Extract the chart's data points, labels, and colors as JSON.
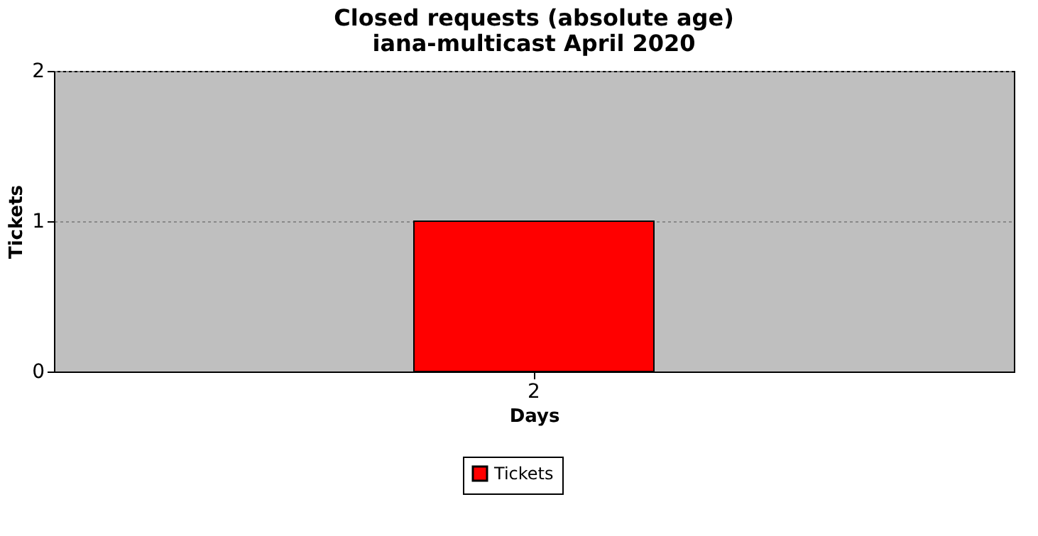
{
  "chart_data": {
    "type": "bar",
    "title": "Closed requests (absolute age)",
    "subtitle": "iana-multicast April 2020",
    "xlabel": "Days",
    "ylabel": "Tickets",
    "categories": [
      "2"
    ],
    "series": [
      {
        "name": "Tickets",
        "color": "#ff0000",
        "values": [
          1
        ]
      }
    ],
    "ylim": [
      0,
      2
    ],
    "yticks": [
      0,
      1,
      2
    ],
    "grid": "y",
    "legend": "bottom"
  }
}
